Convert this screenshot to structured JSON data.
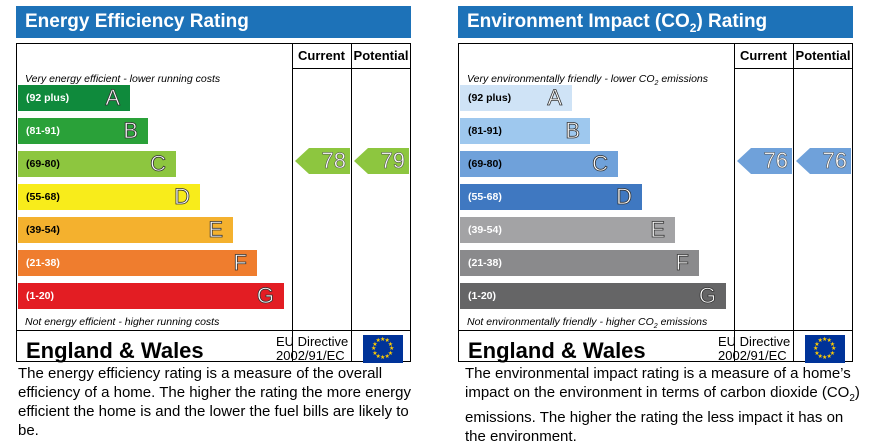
{
  "ee": {
    "title": "Energy Efficiency Rating",
    "col_current": "Current",
    "col_potential": "Potential",
    "top_note": "Very energy efficient - lower running costs",
    "bottom_note": "Not energy efficient - higher running costs",
    "bands": [
      {
        "range": "(92 plus)",
        "letter": "A",
        "color": "#0f8a3c"
      },
      {
        "range": "(81-91)",
        "letter": "B",
        "color": "#2aa139"
      },
      {
        "range": "(69-80)",
        "letter": "C",
        "color": "#8dc63f"
      },
      {
        "range": "(55-68)",
        "letter": "D",
        "color": "#f8ec1b"
      },
      {
        "range": "(39-54)",
        "letter": "E",
        "color": "#f4b12e"
      },
      {
        "range": "(21-38)",
        "letter": "F",
        "color": "#ef7d2e"
      },
      {
        "range": "(1-20)",
        "letter": "G",
        "color": "#e31d23"
      }
    ],
    "current": "78",
    "potential": "79",
    "arrow_color": "#8dc63f",
    "region": "England & Wales",
    "directive_line1": "EU Directive",
    "directive_line2": "2002/91/EC",
    "description": "The energy efficiency rating is a measure of the overall efficiency of a home. The higher the rating the more energy efficient the home is and the lower the fuel bills are likely to be."
  },
  "ei": {
    "title_pre": "Environment Impact (CO",
    "title_sub": "2",
    "title_post": ") Rating",
    "col_current": "Current",
    "col_potential": "Potential",
    "top_note_pre": "Very environmentally friendly - lower CO",
    "top_note_sub": "2",
    "top_note_post": " emissions",
    "bottom_note_pre": "Not environmentally friendly - higher CO",
    "bottom_note_sub": "2",
    "bottom_note_post": " emissions",
    "bands": [
      {
        "range": "(92 plus)",
        "letter": "A",
        "color": "#cfe3f6"
      },
      {
        "range": "(81-91)",
        "letter": "B",
        "color": "#9ec8ee"
      },
      {
        "range": "(69-80)",
        "letter": "C",
        "color": "#6fa1da"
      },
      {
        "range": "(55-68)",
        "letter": "D",
        "color": "#3f78c1"
      },
      {
        "range": "(39-54)",
        "letter": "E",
        "color": "#a3a3a5"
      },
      {
        "range": "(21-38)",
        "letter": "F",
        "color": "#8a8a8c"
      },
      {
        "range": "(1-20)",
        "letter": "G",
        "color": "#656566"
      }
    ],
    "current": "76",
    "potential": "76",
    "arrow_color": "#6fa1da",
    "region": "England & Wales",
    "directive_line1": "EU Directive",
    "directive_line2": "2002/91/EC",
    "desc_pre": "The environmental impact rating is a measure of a home’s impact on the environment in terms of carbon dioxide (CO",
    "desc_sub": "2",
    "desc_post": ") emissions. The higher the rating the less impact it has on the environment."
  }
}
